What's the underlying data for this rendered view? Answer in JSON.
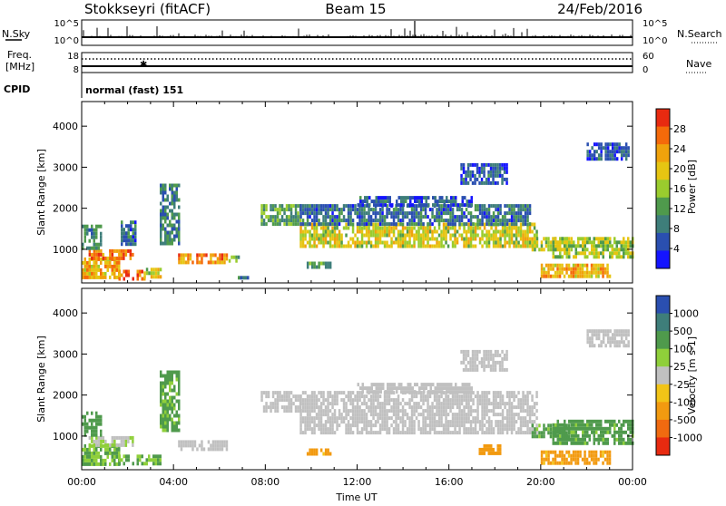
{
  "header": {
    "station": "Stokkseyri (fitACF)",
    "beam": "Beam 15",
    "date": "24/Feb/2016"
  },
  "strips": {
    "nsky": {
      "label": "N.Sky",
      "ticks": [
        "10^5",
        "10^0"
      ],
      "right_label": "N.Search",
      "right_ticks": [
        "10^5",
        "10^0"
      ]
    },
    "freq": {
      "label_line1": "Freq.",
      "label_line2": "[MHz]",
      "ticks": [
        "18",
        "8"
      ],
      "right_label": "Nave",
      "right_ticks": [
        "60",
        "0"
      ]
    },
    "cpid": {
      "label": "CPID",
      "value": "normal (fast) 151"
    }
  },
  "colors": {
    "power": [
      "#1414ff",
      "#2a4fb0",
      "#3e7e7a",
      "#4f9a4c",
      "#9acc2e",
      "#e6c512",
      "#f0a20c",
      "#f56a0a",
      "#e82a10"
    ],
    "velocity": [
      "#2a4fb0",
      "#3e7e7a",
      "#4f9a4c",
      "#8fcf3a",
      "#c0c0c0",
      "#f2c417",
      "#f29a10",
      "#f06a10",
      "#e82a10"
    ]
  },
  "chart_data": [
    {
      "type": "heatmap",
      "panel": "power",
      "xlabel": "Time UT",
      "ylabel": "Slant Range [km]",
      "x_ticks": [
        "00:00",
        "04:00",
        "08:00",
        "12:00",
        "16:00",
        "20:00",
        "00:00"
      ],
      "x_range_hours": [
        0,
        24
      ],
      "y_ticks": [
        1000,
        2000,
        3000,
        4000
      ],
      "ylim": [
        180,
        4600
      ],
      "colorbar": {
        "label": "Power [dB]",
        "ticks": [
          4,
          8,
          12,
          16,
          20,
          24,
          28
        ],
        "range": [
          0,
          32
        ]
      },
      "regions": [
        {
          "t": [
            0.0,
            1.6
          ],
          "r": [
            300,
            800
          ],
          "value": 22
        },
        {
          "t": [
            1.6,
            2.7
          ],
          "r": [
            300,
            500
          ],
          "value": 26
        },
        {
          "t": [
            2.7,
            3.4
          ],
          "r": [
            300,
            550
          ],
          "value": 18
        },
        {
          "t": [
            0.3,
            2.2
          ],
          "r": [
            750,
            1000
          ],
          "value": 26
        },
        {
          "t": [
            0.0,
            0.8
          ],
          "r": [
            1000,
            1600
          ],
          "value": 10
        },
        {
          "t": [
            1.7,
            2.3
          ],
          "r": [
            1100,
            1700
          ],
          "value": 8
        },
        {
          "t": [
            3.4,
            4.2
          ],
          "r": [
            1100,
            2600
          ],
          "value": 9
        },
        {
          "t": [
            4.2,
            6.3
          ],
          "r": [
            680,
            900
          ],
          "value": 24
        },
        {
          "t": [
            6.3,
            6.8
          ],
          "r": [
            700,
            850
          ],
          "value": 14
        },
        {
          "t": [
            6.8,
            7.3
          ],
          "r": [
            300,
            350
          ],
          "value": 8
        },
        {
          "t": [
            7.8,
            9.5
          ],
          "r": [
            1600,
            2100
          ],
          "value": 12
        },
        {
          "t": [
            9.5,
            19.8
          ],
          "r": [
            1100,
            1650
          ],
          "value": 18
        },
        {
          "t": [
            9.5,
            19.5
          ],
          "r": [
            1650,
            2100
          ],
          "value": 8
        },
        {
          "t": [
            12.0,
            17.0
          ],
          "r": [
            2100,
            2300
          ],
          "value": 6
        },
        {
          "t": [
            16.5,
            18.5
          ],
          "r": [
            2600,
            3100
          ],
          "value": 6
        },
        {
          "t": [
            9.8,
            10.8
          ],
          "r": [
            550,
            700
          ],
          "value": 12
        },
        {
          "t": [
            19.6,
            21.2
          ],
          "r": [
            1000,
            1300
          ],
          "value": 18
        },
        {
          "t": [
            20.0,
            23.0
          ],
          "r": [
            380,
            650
          ],
          "value": 22
        },
        {
          "t": [
            20.5,
            24.0
          ],
          "r": [
            800,
            1300
          ],
          "value": 16
        },
        {
          "t": [
            22.0,
            23.8
          ],
          "r": [
            3200,
            3600
          ],
          "value": 6
        }
      ]
    },
    {
      "type": "heatmap",
      "panel": "velocity",
      "xlabel": "Time UT",
      "ylabel": "Slant Range [km]",
      "x_ticks": [
        "00:00",
        "04:00",
        "08:00",
        "12:00",
        "16:00",
        "20:00",
        "00:00"
      ],
      "x_range_hours": [
        0,
        24
      ],
      "y_ticks": [
        1000,
        2000,
        3000,
        4000
      ],
      "ylim": [
        180,
        4600
      ],
      "colorbar": {
        "label": "Velocity [m s-1]",
        "ticks": [
          "1000",
          "500",
          "100",
          "25",
          "-25",
          "-100",
          "-500",
          "-1000"
        ]
      },
      "regions": [
        {
          "t": [
            0.0,
            1.6
          ],
          "r": [
            300,
            800
          ],
          "value": 100
        },
        {
          "t": [
            1.6,
            3.4
          ],
          "r": [
            300,
            550
          ],
          "value": 100
        },
        {
          "t": [
            0.3,
            2.2
          ],
          "r": [
            750,
            1000
          ],
          "value": 20
        },
        {
          "t": [
            0.0,
            0.8
          ],
          "r": [
            1000,
            1600
          ],
          "value": 300
        },
        {
          "t": [
            3.4,
            4.2
          ],
          "r": [
            1100,
            2600
          ],
          "value": 150
        },
        {
          "t": [
            4.2,
            6.3
          ],
          "r": [
            680,
            900
          ],
          "value": 0
        },
        {
          "t": [
            7.8,
            9.5
          ],
          "r": [
            1600,
            2100
          ],
          "value": 0
        },
        {
          "t": [
            9.5,
            19.8
          ],
          "r": [
            1100,
            2100
          ],
          "value": 0
        },
        {
          "t": [
            12.0,
            17.0
          ],
          "r": [
            2100,
            2300
          ],
          "value": 0
        },
        {
          "t": [
            16.5,
            18.5
          ],
          "r": [
            2600,
            3100
          ],
          "value": 0
        },
        {
          "t": [
            9.8,
            10.8
          ],
          "r": [
            550,
            700
          ],
          "value": -200
        },
        {
          "t": [
            17.3,
            18.2
          ],
          "r": [
            600,
            800
          ],
          "value": -300
        },
        {
          "t": [
            19.6,
            21.2
          ],
          "r": [
            1000,
            1300
          ],
          "value": 150
        },
        {
          "t": [
            20.0,
            23.0
          ],
          "r": [
            380,
            650
          ],
          "value": -200
        },
        {
          "t": [
            20.5,
            24.0
          ],
          "r": [
            800,
            1400
          ],
          "value": 200
        },
        {
          "t": [
            22.0,
            23.8
          ],
          "r": [
            3200,
            3600
          ],
          "value": 0
        }
      ]
    }
  ]
}
